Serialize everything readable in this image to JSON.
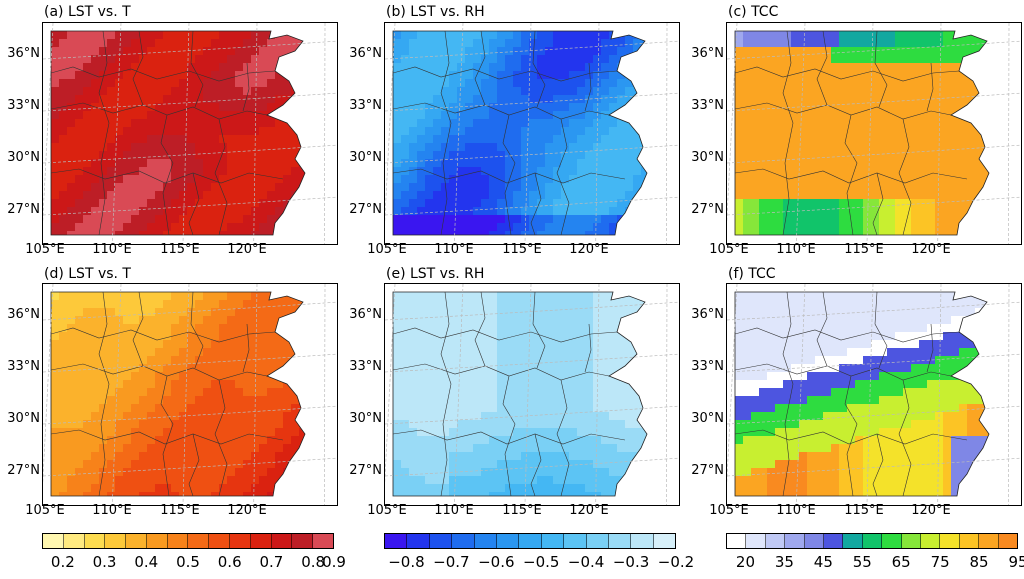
{
  "panels": [
    {
      "title": "(a) LST vs. T",
      "scale": "corr_pos"
    },
    {
      "title": "(b) LST vs. RH",
      "scale": "corr_neg"
    },
    {
      "title": "(c) TCC",
      "scale": "tcc"
    },
    {
      "title": "(d) LST vs. T",
      "scale": "corr_pos"
    },
    {
      "title": "(e) LST vs. RH",
      "scale": "corr_neg"
    },
    {
      "title": "(f) TCC",
      "scale": "tcc"
    }
  ],
  "lat_labels": [
    "36°N",
    "33°N",
    "30°N",
    "27°N"
  ],
  "lon_labels": [
    "105°E",
    "110°E",
    "115°E",
    "120°E"
  ],
  "colorbars": {
    "corr_pos": {
      "colors": [
        "#fff7b0",
        "#ffea80",
        "#fddc50",
        "#fdc93a",
        "#fbb22c",
        "#f99a20",
        "#f7821a",
        "#f46a16",
        "#ef5012",
        "#e63510",
        "#da2210",
        "#cc1818",
        "#bd1e26",
        "#d94a55"
      ],
      "ticks": [
        "0.2",
        "0.3",
        "0.4",
        "0.5",
        "0.6",
        "0.7",
        "0.8",
        "0.9"
      ]
    },
    "corr_neg": {
      "colors": [
        "#3a16f0",
        "#2335ee",
        "#1d52ee",
        "#1f6cef",
        "#2484f0",
        "#2b97f1",
        "#35a8f2",
        "#44b7f3",
        "#5cc4f4",
        "#7ad0f5",
        "#9adbf6",
        "#bce7f8",
        "#d7f0fa"
      ],
      "ticks": [
        "−0.8",
        "−0.7",
        "−0.6",
        "−0.5",
        "−0.4",
        "−0.3",
        "−0.2"
      ]
    },
    "tcc": {
      "colors": [
        "#ffffff",
        "#dfe6fb",
        "#c0c9f5",
        "#9fa8ee",
        "#7f87e6",
        "#4d55e0",
        "#12a8a0",
        "#11c46a",
        "#2edc40",
        "#86e63a",
        "#c8ef30",
        "#f4e22a",
        "#fcc425",
        "#fba522",
        "#f98a20"
      ],
      "ticks": [
        "20",
        "35",
        "45",
        "55",
        "65",
        "75",
        "85",
        "95"
      ]
    }
  }
}
